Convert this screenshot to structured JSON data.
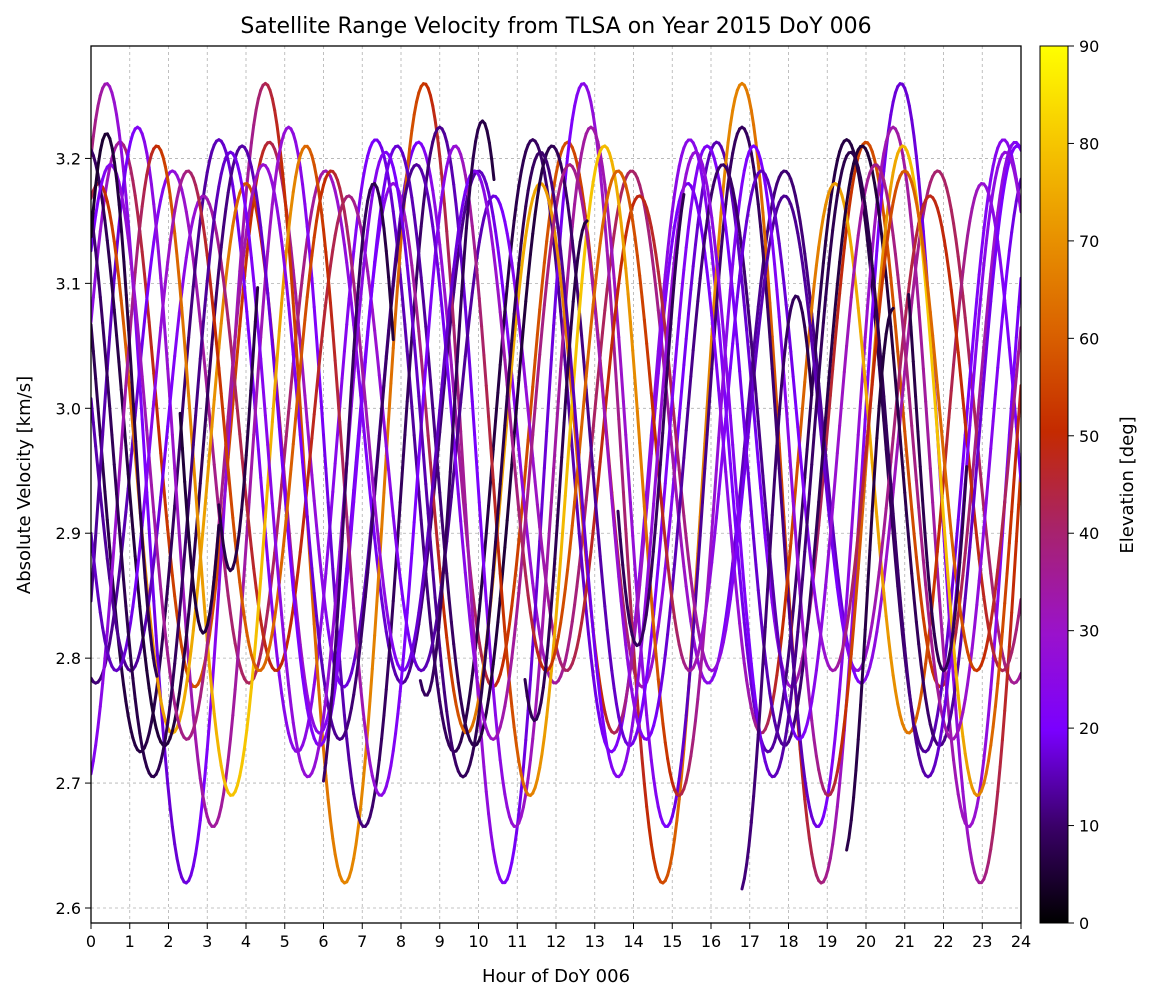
{
  "chart_data": {
    "type": "scatter",
    "title": "Satellite Range Velocity from TLSA on Year 2015 DoY 006",
    "xlabel": "Hour of DoY 006",
    "ylabel": "Absolute Velocity [km/s]",
    "xlim": [
      0,
      24
    ],
    "ylim": [
      2.588,
      3.29
    ],
    "xticks": [
      0,
      1,
      2,
      3,
      4,
      5,
      6,
      7,
      8,
      9,
      10,
      11,
      12,
      13,
      14,
      15,
      16,
      17,
      18,
      19,
      20,
      21,
      22,
      23,
      24
    ],
    "yticks": [
      2.6,
      2.7,
      2.8,
      2.9,
      3.0,
      3.1,
      3.2
    ],
    "grid": true,
    "colormap": "gnuplot",
    "colorbar": {
      "label": "Elevation [deg]",
      "range": [
        0,
        90
      ],
      "ticks": [
        0,
        10,
        20,
        30,
        40,
        50,
        60,
        70,
        80,
        90
      ]
    },
    "series": [
      {
        "t0": 0.0,
        "t1": 24.0,
        "mean": 2.995,
        "amp": 0.218,
        "period": 3.85,
        "phase": 0.75,
        "elev_max": 58
      },
      {
        "t0": 0.0,
        "t1": 24.0,
        "mean": 2.985,
        "amp": 0.205,
        "period": 3.95,
        "phase": 2.1,
        "elev_max": 42
      },
      {
        "t0": 0.0,
        "t1": 24.0,
        "mean": 2.97,
        "amp": 0.245,
        "period": 4.05,
        "phase": 3.3,
        "elev_max": 25
      },
      {
        "t0": 0.0,
        "t1": 24.0,
        "mean": 2.94,
        "amp": 0.32,
        "period": 4.1,
        "phase": 4.5,
        "elev_max": 68
      },
      {
        "t0": 0.0,
        "t1": 24.0,
        "mean": 2.945,
        "amp": 0.28,
        "period": 3.9,
        "phase": 1.2,
        "elev_max": 35
      },
      {
        "t0": 0.0,
        "t1": 24.0,
        "mean": 2.96,
        "amp": 0.22,
        "period": 3.8,
        "phase": 0.2,
        "elev_max": 75
      },
      {
        "t0": 0.0,
        "t1": 24.0,
        "mean": 2.98,
        "amp": 0.19,
        "period": 3.75,
        "phase": 2.9,
        "elev_max": 50
      },
      {
        "t0": 0.0,
        "t1": 24.0,
        "mean": 2.97,
        "amp": 0.24,
        "period": 4.0,
        "phase": 3.9,
        "elev_max": 22
      },
      {
        "t0": 0.0,
        "t1": 24.0,
        "mean": 2.95,
        "amp": 0.26,
        "period": 3.85,
        "phase": 1.7,
        "elev_max": 80
      },
      {
        "t0": 0.0,
        "t1": 24.0,
        "mean": 2.965,
        "amp": 0.23,
        "period": 3.95,
        "phase": 0.5,
        "elev_max": 38
      },
      {
        "t0": 0.0,
        "t1": 24.0,
        "mean": 2.99,
        "amp": 0.2,
        "period": 3.7,
        "phase": 2.5,
        "elev_max": 62
      },
      {
        "t0": 0.0,
        "t1": 24.0,
        "mean": 2.955,
        "amp": 0.25,
        "period": 4.0,
        "phase": 3.6,
        "elev_max": 28
      },
      {
        "t0": 0.0,
        "t1": 1.7,
        "mean": 3.0,
        "amp": 0.22,
        "period": 2.8,
        "phase": 0.4,
        "elev_max": 8
      },
      {
        "t0": 2.3,
        "t1": 3.3,
        "mean": 3.02,
        "amp": 0.2,
        "period": 2.6,
        "phase": 1.6,
        "elev_max": 6
      },
      {
        "t0": 3.3,
        "t1": 4.3,
        "mean": 3.05,
        "amp": 0.18,
        "period": 2.4,
        "phase": 2.4,
        "elev_max": 7
      },
      {
        "t0": 6.0,
        "t1": 7.8,
        "mean": 2.93,
        "amp": 0.25,
        "period": 3.0,
        "phase": 4.3,
        "elev_max": 10
      },
      {
        "t0": 8.5,
        "t1": 10.4,
        "mean": 3.0,
        "amp": 0.23,
        "period": 2.9,
        "phase": 7.2,
        "elev_max": 9
      },
      {
        "t0": 11.2,
        "t1": 12.8,
        "mean": 2.95,
        "amp": 0.2,
        "period": 2.7,
        "phase": 10.1,
        "elev_max": 8
      },
      {
        "t0": 13.6,
        "t1": 15.3,
        "mean": 3.0,
        "amp": 0.19,
        "period": 2.8,
        "phase": 12.7,
        "elev_max": 9
      },
      {
        "t0": 16.8,
        "t1": 18.6,
        "mean": 2.85,
        "amp": 0.24,
        "period": 3.0,
        "phase": 15.2,
        "elev_max": 11
      },
      {
        "t0": 19.5,
        "t1": 20.7,
        "mean": 2.86,
        "amp": 0.22,
        "period": 2.6,
        "phase": 18.1,
        "elev_max": 7
      },
      {
        "t0": 21.1,
        "t1": 22.6,
        "mean": 3.0,
        "amp": 0.21,
        "period": 2.8,
        "phase": 20.6,
        "elev_max": 8
      }
    ]
  }
}
